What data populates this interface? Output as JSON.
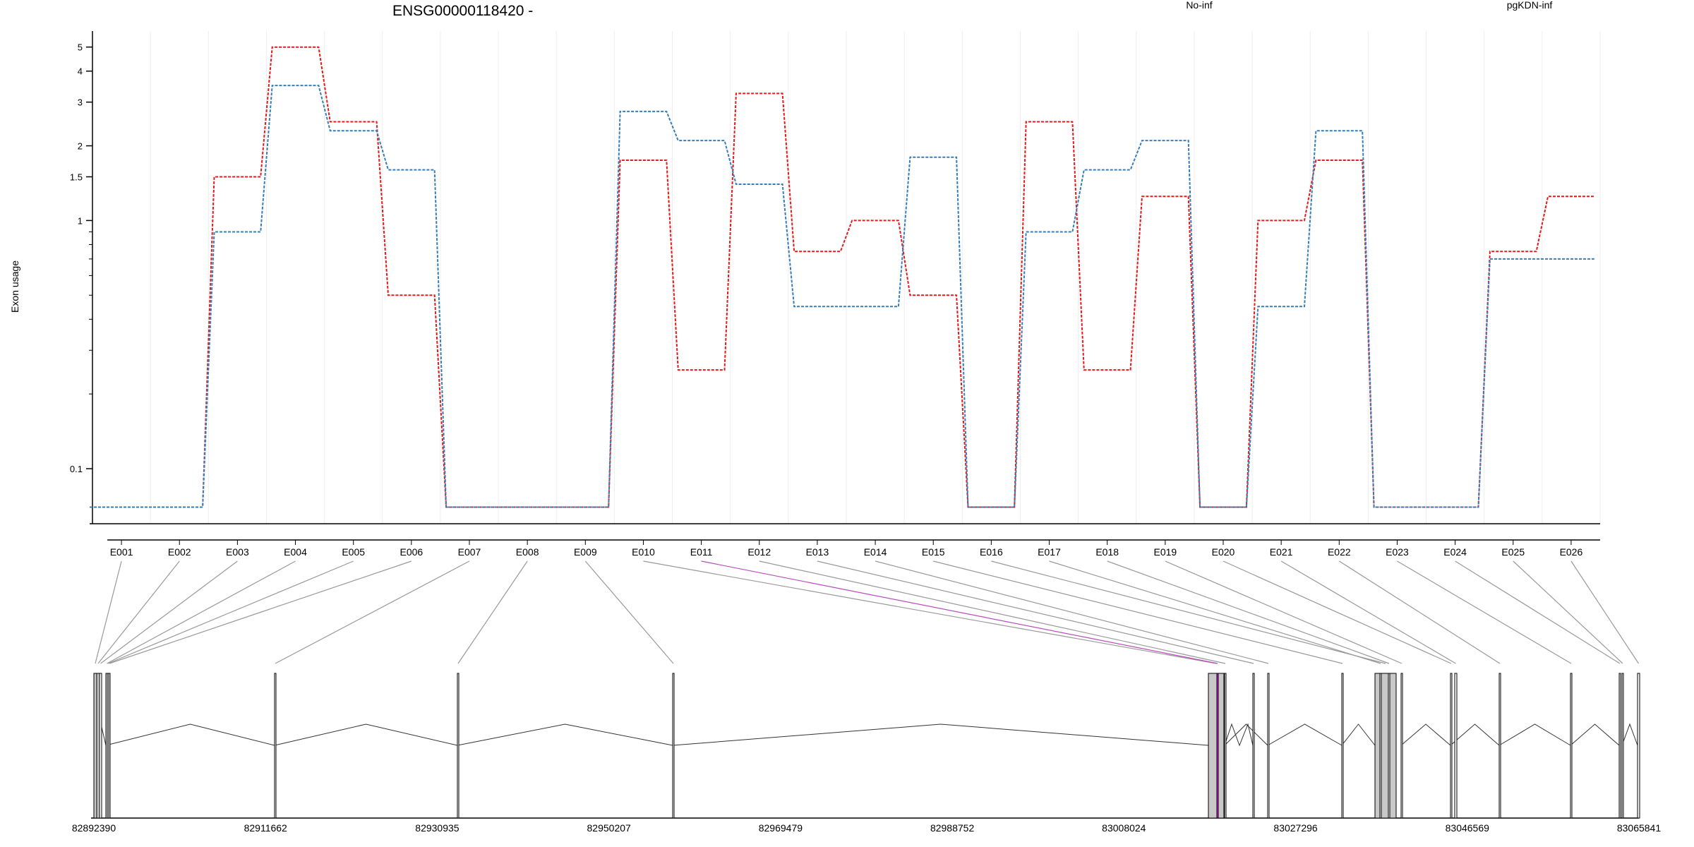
{
  "chart_data": {
    "type": "line",
    "title": "ENSG00000118420 -",
    "ylabel": "Exon usage",
    "xlabel": "",
    "y_scale": "log",
    "ylim": [
      0.06,
      5.8
    ],
    "yticks": [
      {
        "value": 0.1,
        "label": "0.1"
      },
      {
        "value": 1,
        "label": "1"
      },
      {
        "value": 1.5,
        "label": "1.5"
      },
      {
        "value": 2,
        "label": "2"
      },
      {
        "value": 3,
        "label": "3"
      },
      {
        "value": 4,
        "label": "4"
      },
      {
        "value": 5,
        "label": "5"
      }
    ],
    "yminor": [
      0.2,
      0.3,
      0.4,
      0.5,
      0.6,
      0.7,
      0.8,
      0.9
    ],
    "categories": [
      "E001",
      "E002",
      "E003",
      "E004",
      "E005",
      "E006",
      "E007",
      "E008",
      "E009",
      "E010",
      "E011",
      "E012",
      "E013",
      "E014",
      "E015",
      "E016",
      "E017",
      "E018",
      "E019",
      "E020",
      "E021",
      "E022",
      "E023",
      "E024",
      "E025",
      "E026"
    ],
    "series": [
      {
        "name": "No-inf",
        "color": "#e41a1c",
        "values": [
          0.07,
          0.07,
          1.5,
          5.0,
          2.5,
          0.5,
          0.07,
          0.07,
          0.07,
          1.75,
          0.25,
          3.25,
          0.75,
          1.0,
          0.5,
          0.07,
          2.5,
          0.25,
          1.25,
          0.07,
          1.0,
          1.75,
          0.07,
          0.07,
          0.75,
          1.25
        ]
      },
      {
        "name": "pgKDN-inf",
        "color": "#377eb8",
        "values": [
          0.07,
          0.07,
          0.9,
          3.5,
          2.3,
          1.6,
          0.07,
          0.07,
          0.07,
          2.75,
          2.1,
          1.4,
          0.45,
          0.45,
          1.8,
          0.07,
          0.9,
          1.6,
          2.1,
          0.07,
          0.45,
          2.3,
          0.07,
          0.07,
          0.7,
          0.7
        ]
      }
    ],
    "grid": true,
    "legend": "top",
    "gene_model": {
      "coordinates": [
        "82892390",
        "82911662",
        "82930935",
        "82950207",
        "82969479",
        "82988752",
        "83008024",
        "83027296",
        "83046569",
        "83065841"
      ],
      "highlighted_exon": "E011",
      "highlight_color": "#ff1aff",
      "exon_fill": "#c8c8c8"
    }
  }
}
